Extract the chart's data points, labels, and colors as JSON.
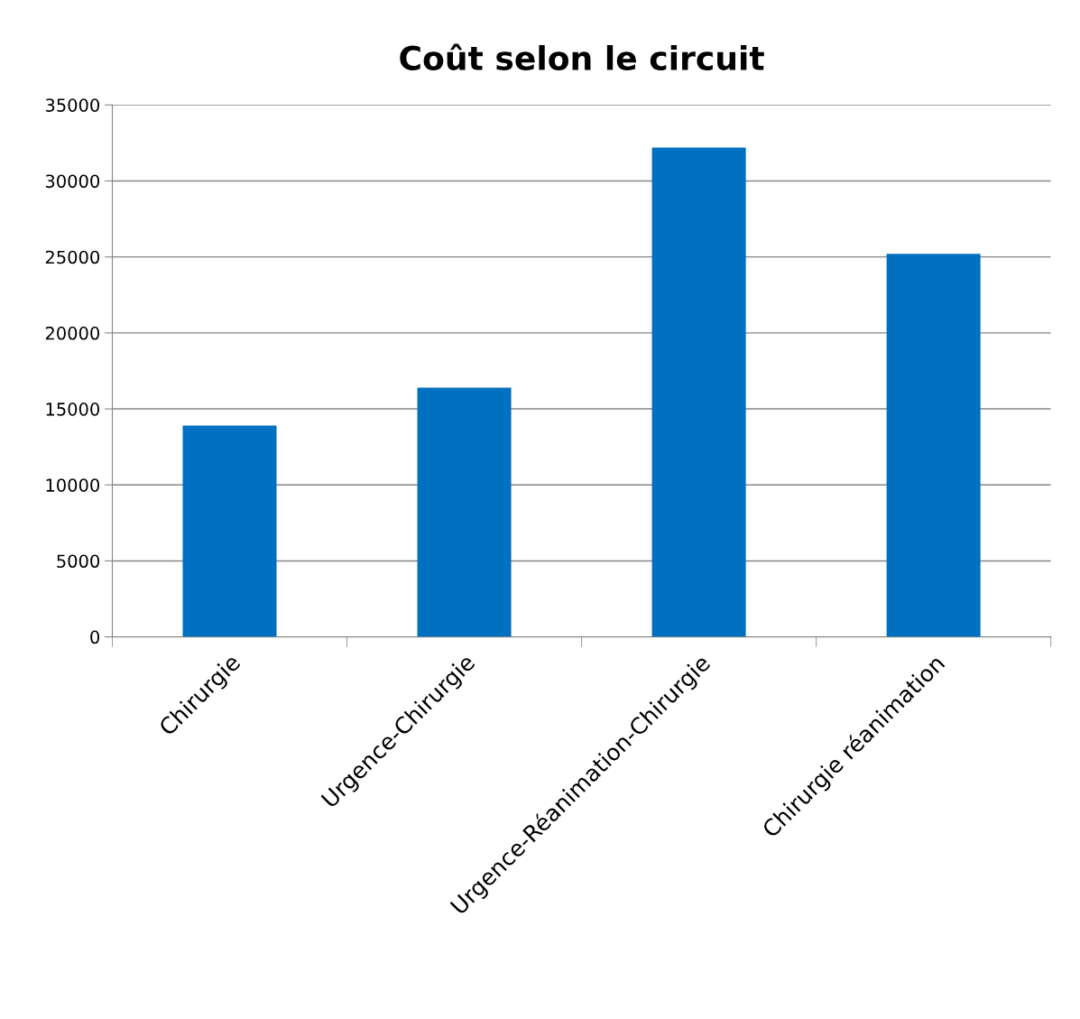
{
  "chart_data": {
    "type": "bar",
    "title": "Coût selon le circuit",
    "categories": [
      "Chirurgie",
      "Urgence-Chirurgie",
      "Urgence-Réanimation-Chirurgie",
      "Chirurgie réanimation"
    ],
    "values": [
      13900,
      16400,
      32200,
      25200
    ],
    "color": "#0070c0",
    "ylim": [
      0,
      35000
    ],
    "yticks": [
      0,
      5000,
      10000,
      15000,
      20000,
      25000,
      30000,
      35000
    ],
    "grid": "y"
  }
}
